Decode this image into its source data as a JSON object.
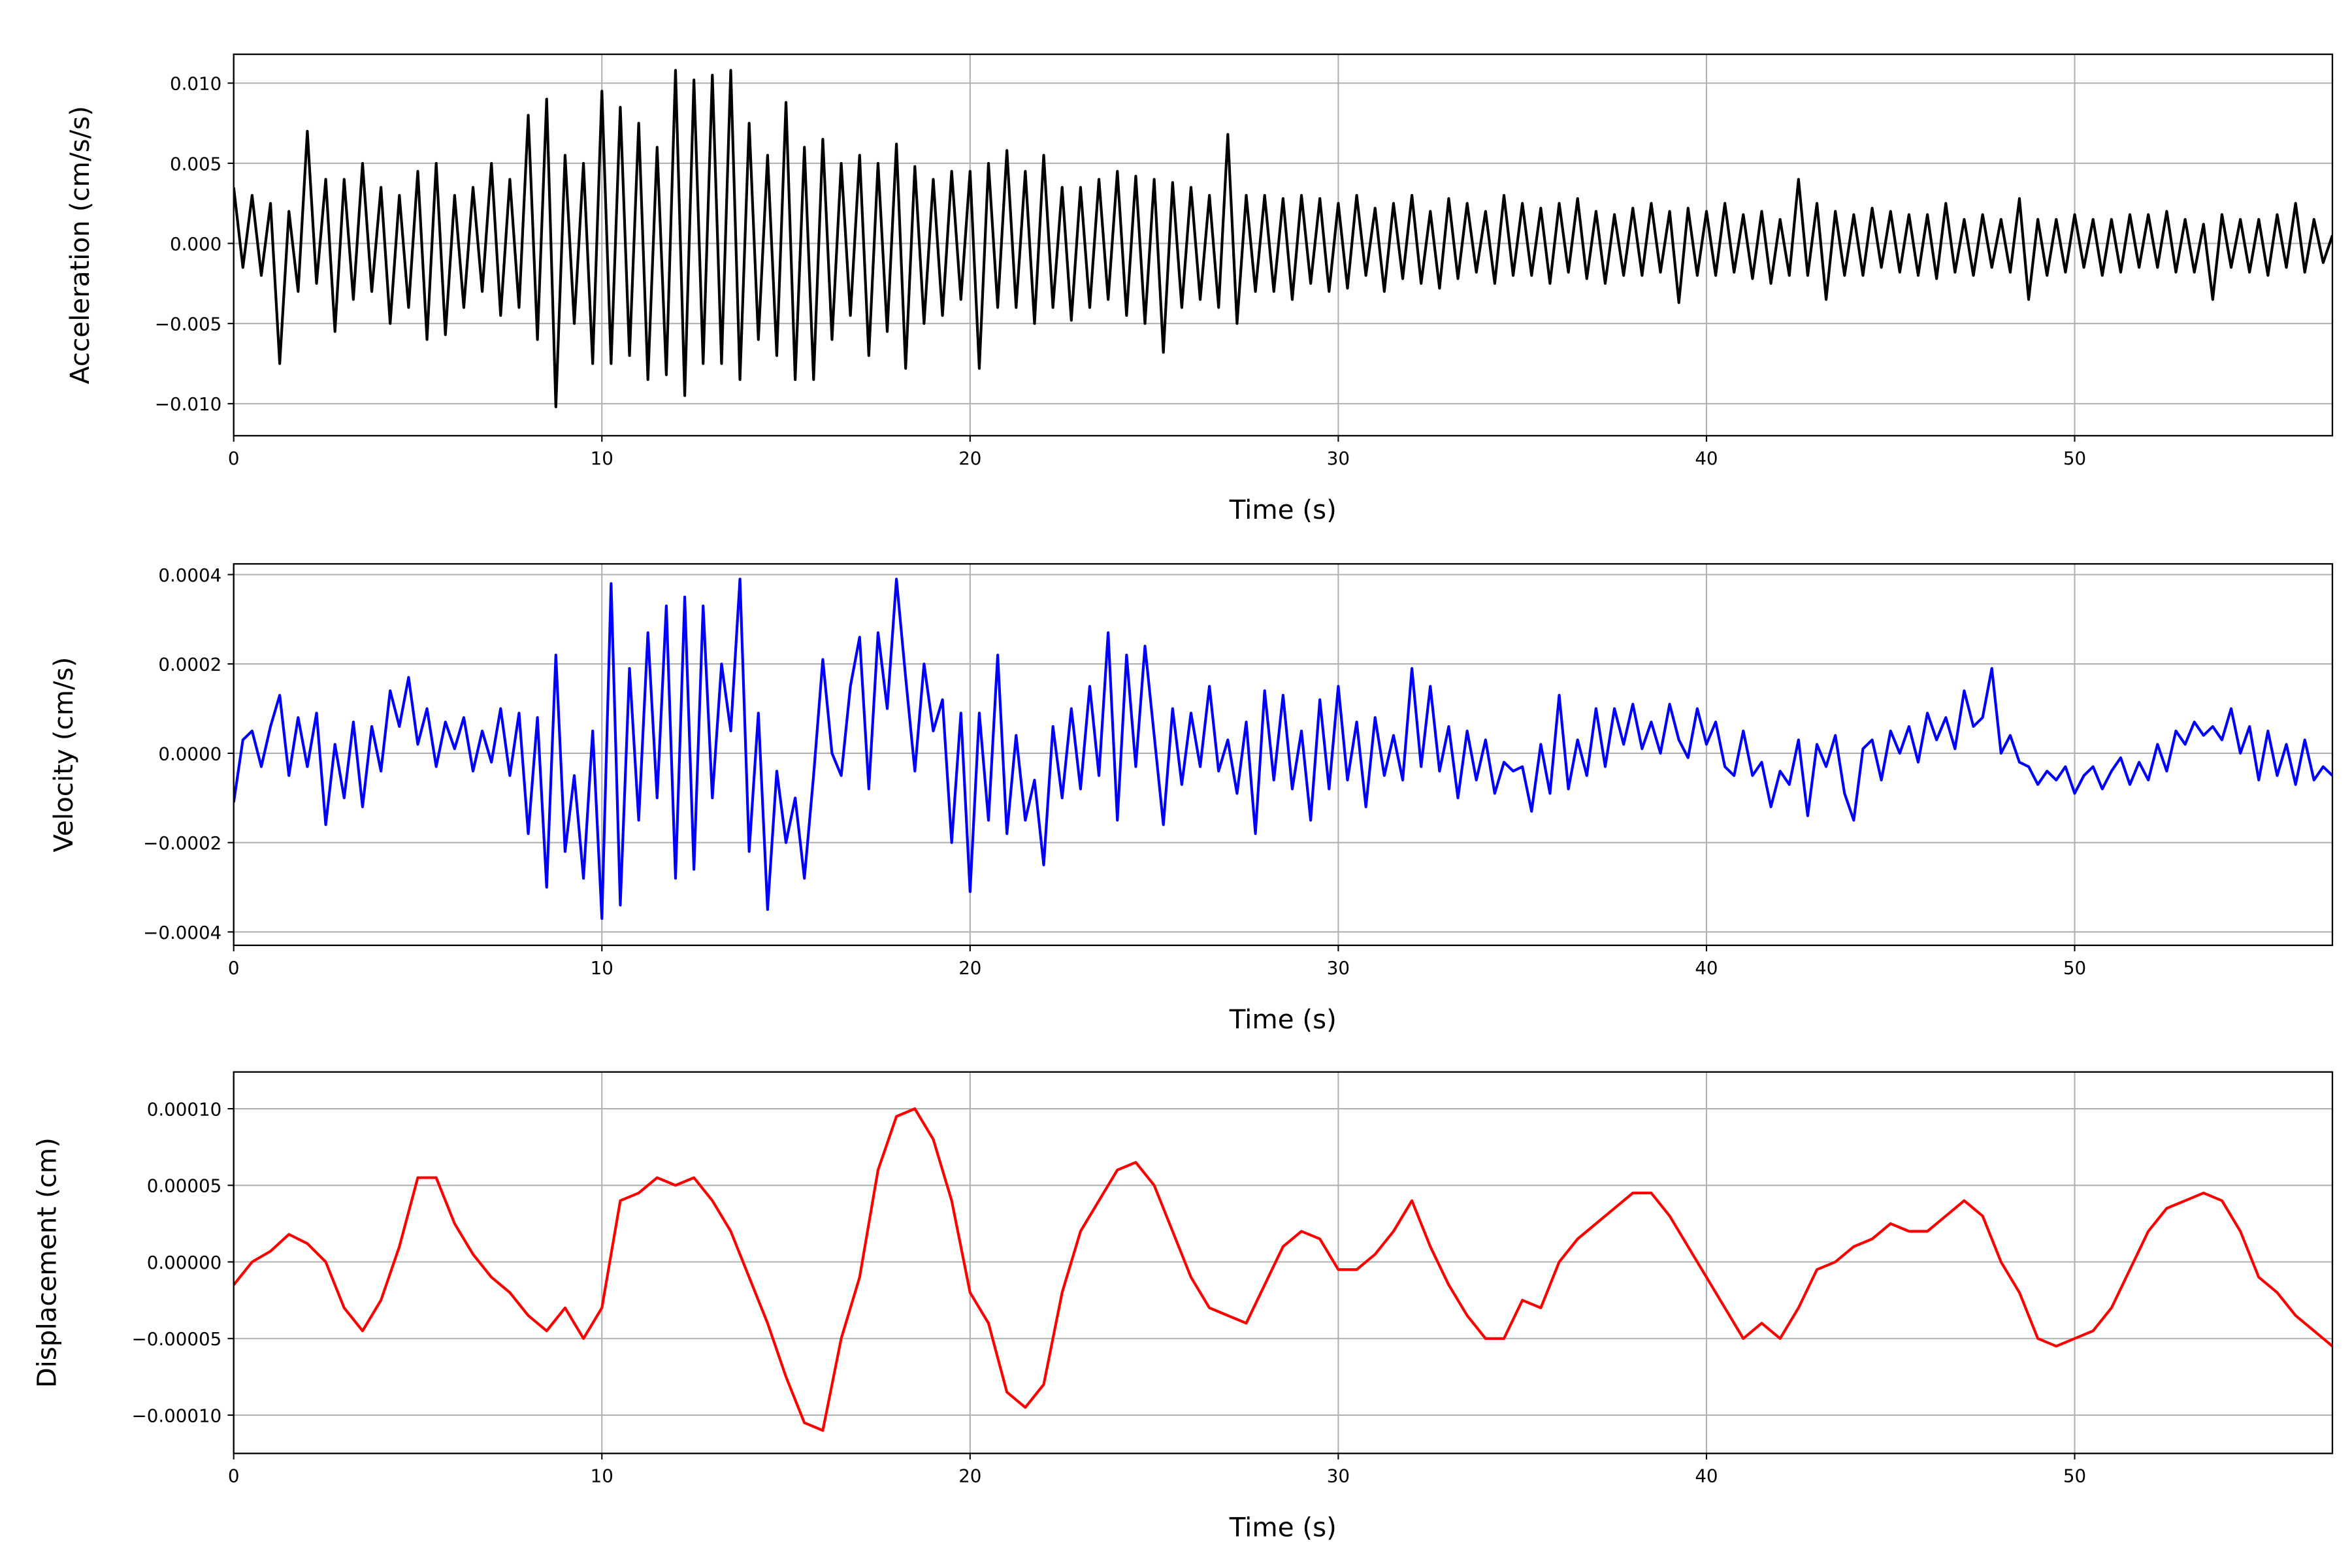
{
  "chart_data": [
    {
      "type": "line",
      "title": "",
      "xlabel": "Time (s)",
      "ylabel": "Acceleration (cm/s/s)",
      "xlim": [
        0,
        57
      ],
      "ylim": [
        -0.012,
        0.0118
      ],
      "grid": true,
      "color": "#000000",
      "x_start": 0,
      "x_step": 0.25,
      "value_scale": 0.001,
      "xticks": [
        0,
        10,
        20,
        30,
        40,
        50
      ],
      "xtick_labels": [
        "0",
        "10",
        "20",
        "30",
        "40",
        "50"
      ],
      "yticks": [
        -0.01,
        -0.005,
        0.0,
        0.005,
        0.01
      ],
      "ytick_labels": [
        "−0.010",
        "−0.005",
        "0.000",
        "0.005",
        "0.010"
      ],
      "values": [
        3.5,
        -1.5,
        3.0,
        -2.0,
        2.5,
        -7.5,
        2.0,
        -3.0,
        7.0,
        -2.5,
        4.0,
        -5.5,
        4.0,
        -3.5,
        5.0,
        -3.0,
        3.5,
        -5.0,
        3.0,
        -4.0,
        4.5,
        -6.0,
        5.0,
        -5.7,
        3.0,
        -4.0,
        3.5,
        -3.0,
        5.0,
        -4.5,
        4.0,
        -4.0,
        8.0,
        -6.0,
        9.0,
        -10.2,
        5.5,
        -5.0,
        5.0,
        -7.5,
        9.5,
        -7.5,
        8.5,
        -7.0,
        7.5,
        -8.5,
        6.0,
        -8.2,
        10.8,
        -9.5,
        10.2,
        -7.5,
        10.5,
        -7.5,
        10.8,
        -8.5,
        7.5,
        -6.0,
        5.5,
        -7.0,
        8.8,
        -8.5,
        6.0,
        -8.5,
        6.5,
        -6.0,
        5.0,
        -4.5,
        5.5,
        -7.0,
        5.0,
        -5.5,
        6.2,
        -7.8,
        4.8,
        -5.0,
        4.0,
        -4.5,
        4.5,
        -3.5,
        4.5,
        -7.8,
        5.0,
        -4.0,
        5.8,
        -4.0,
        4.5,
        -5.0,
        5.5,
        -4.0,
        3.5,
        -4.8,
        3.5,
        -4.0,
        4.0,
        -3.5,
        4.5,
        -4.5,
        4.2,
        -5.0,
        4.0,
        -6.8,
        3.8,
        -4.0,
        3.5,
        -3.5,
        3.0,
        -4.0,
        6.8,
        -5.0,
        3.0,
        -3.0,
        3.0,
        -3.0,
        2.8,
        -3.5,
        3.0,
        -2.5,
        2.8,
        -3.0,
        2.5,
        -2.8,
        3.0,
        -2.0,
        2.2,
        -3.0,
        2.5,
        -2.2,
        3.0,
        -2.5,
        2.0,
        -2.8,
        2.8,
        -2.2,
        2.5,
        -1.8,
        2.0,
        -2.5,
        3.0,
        -2.0,
        2.5,
        -2.0,
        2.2,
        -2.5,
        2.5,
        -1.8,
        2.8,
        -2.2,
        2.0,
        -2.5,
        1.8,
        -2.0,
        2.2,
        -2.0,
        2.5,
        -1.8,
        2.0,
        -3.7,
        2.2,
        -2.0,
        2.0,
        -2.0,
        2.5,
        -1.8,
        1.8,
        -2.2,
        2.0,
        -2.5,
        1.5,
        -2.0,
        4.0,
        -2.0,
        2.5,
        -3.5,
        2.0,
        -2.0,
        1.8,
        -2.0,
        2.2,
        -1.5,
        2.0,
        -1.8,
        1.8,
        -2.0,
        1.8,
        -2.2,
        2.5,
        -1.8,
        1.5,
        -2.0,
        1.8,
        -1.5,
        1.5,
        -1.8,
        2.8,
        -3.5,
        1.5,
        -2.0,
        1.5,
        -1.8,
        1.8,
        -1.5,
        1.5,
        -2.0,
        1.5,
        -1.8,
        1.8,
        -1.5,
        1.8,
        -1.5,
        2.0,
        -1.8,
        1.5,
        -1.8,
        1.2,
        -3.5,
        1.8,
        -1.5,
        1.5,
        -1.8,
        1.5,
        -2.0,
        1.8,
        -1.5,
        2.5,
        -1.8,
        1.5,
        -1.2,
        0.5
      ]
    },
    {
      "type": "line",
      "title": "",
      "xlabel": "Time (s)",
      "ylabel": "Velocity (cm/s)",
      "xlim": [
        0,
        57
      ],
      "ylim": [
        -0.00043,
        0.000424
      ],
      "grid": true,
      "color": "#0000ff",
      "x_start": 0,
      "x_step": 0.25,
      "value_scale": 0.0001,
      "xticks": [
        0,
        10,
        20,
        30,
        40,
        50
      ],
      "xtick_labels": [
        "0",
        "10",
        "20",
        "30",
        "40",
        "50"
      ],
      "yticks": [
        -0.0004,
        -0.0002,
        0.0,
        0.0002,
        0.0004
      ],
      "ytick_labels": [
        "−0.0004",
        "−0.0002",
        "0.0000",
        "0.0002",
        "0.0004"
      ],
      "values": [
        -1.1,
        0.3,
        0.5,
        -0.3,
        0.6,
        1.3,
        -0.5,
        0.8,
        -0.3,
        0.9,
        -1.6,
        0.2,
        -1.0,
        0.7,
        -1.2,
        0.6,
        -0.4,
        1.4,
        0.6,
        1.7,
        0.2,
        1.0,
        -0.3,
        0.7,
        0.1,
        0.8,
        -0.4,
        0.5,
        -0.2,
        1.0,
        -0.5,
        0.9,
        -1.8,
        0.8,
        -3.0,
        2.2,
        -2.2,
        -0.5,
        -2.8,
        0.5,
        -3.7,
        3.8,
        -3.4,
        1.9,
        -1.5,
        2.7,
        -1.0,
        3.3,
        -2.8,
        3.5,
        -2.6,
        3.3,
        -1.0,
        2.0,
        0.5,
        3.9,
        -2.2,
        0.9,
        -3.5,
        -0.4,
        -2.0,
        -1.0,
        -2.8,
        -0.5,
        2.1,
        0.0,
        -0.5,
        1.5,
        2.6,
        -0.8,
        2.7,
        1.0,
        3.9,
        1.7,
        -0.4,
        2.0,
        0.5,
        1.2,
        -2.0,
        0.9,
        -3.1,
        0.9,
        -1.5,
        2.2,
        -1.8,
        0.4,
        -1.5,
        -0.6,
        -2.5,
        0.6,
        -1.0,
        1.0,
        -0.8,
        1.5,
        -0.5,
        2.7,
        -1.5,
        2.2,
        -0.3,
        2.4,
        0.4,
        -1.6,
        1.0,
        -0.7,
        0.9,
        -0.3,
        1.5,
        -0.4,
        0.3,
        -0.9,
        0.7,
        -1.8,
        1.4,
        -0.6,
        1.3,
        -0.8,
        0.5,
        -1.5,
        1.2,
        -0.8,
        1.5,
        -0.6,
        0.7,
        -1.2,
        0.8,
        -0.5,
        0.4,
        -0.6,
        1.9,
        -0.3,
        1.5,
        -0.4,
        0.6,
        -1.0,
        0.5,
        -0.6,
        0.3,
        -0.9,
        -0.2,
        -0.4,
        -0.3,
        -1.3,
        0.2,
        -0.9,
        1.3,
        -0.8,
        0.3,
        -0.5,
        1.0,
        -0.3,
        1.0,
        0.2,
        1.1,
        0.1,
        0.7,
        0.0,
        1.1,
        0.3,
        -0.1,
        1.0,
        0.2,
        0.7,
        -0.3,
        -0.5,
        0.5,
        -0.5,
        -0.2,
        -1.2,
        -0.4,
        -0.7,
        0.3,
        -1.4,
        0.2,
        -0.3,
        0.4,
        -0.9,
        -1.5,
        0.1,
        0.3,
        -0.6,
        0.5,
        0.0,
        0.6,
        -0.2,
        0.9,
        0.3,
        0.8,
        0.1,
        1.4,
        0.6,
        0.8,
        1.9,
        0.0,
        0.4,
        -0.2,
        -0.3,
        -0.7,
        -0.4,
        -0.6,
        -0.3,
        -0.9,
        -0.5,
        -0.3,
        -0.8,
        -0.4,
        -0.1,
        -0.7,
        -0.2,
        -0.6,
        0.2,
        -0.4,
        0.5,
        0.2,
        0.7,
        0.4,
        0.6,
        0.3,
        1.0,
        0.0,
        0.6,
        -0.6,
        0.5,
        -0.5,
        0.2,
        -0.7,
        0.3,
        -0.6,
        -0.3,
        -0.5
      ]
    },
    {
      "type": "line",
      "title": "",
      "xlabel": "Time (s)",
      "ylabel": "Displacement (cm)",
      "xlim": [
        0,
        57
      ],
      "ylim": [
        -0.000125,
        0.000124
      ],
      "grid": true,
      "color": "#ff0000",
      "x_start": 0,
      "x_step": 0.5,
      "value_scale": 1e-05,
      "xticks": [
        0,
        10,
        20,
        30,
        40,
        50
      ],
      "xtick_labels": [
        "0",
        "10",
        "20",
        "30",
        "40",
        "50"
      ],
      "yticks": [
        -0.0001,
        -5e-05,
        0.0,
        5e-05,
        0.0001
      ],
      "ytick_labels": [
        "−0.00010",
        "−0.00005",
        "0.00000",
        "0.00005",
        "0.00010"
      ],
      "values": [
        -1.5,
        0,
        0.7,
        1.8,
        1.2,
        0,
        -3,
        -4.5,
        -2.5,
        1,
        5.5,
        5.5,
        2.5,
        0.5,
        -1,
        -2,
        -3.5,
        -4.5,
        -3,
        -5,
        -3,
        4,
        4.5,
        5.5,
        5,
        5.5,
        4,
        2,
        -1,
        -4,
        -7.5,
        -10.5,
        -11,
        -5,
        -1,
        6,
        9.5,
        10,
        8,
        4,
        -2,
        -4,
        -8.5,
        -9.5,
        -8,
        -2,
        2,
        4,
        6,
        6.5,
        5,
        2,
        -1,
        -3,
        -3.5,
        -4,
        -1.5,
        1,
        2,
        1.5,
        -0.5,
        -0.5,
        0.5,
        2,
        4,
        1,
        -1.5,
        -3.5,
        -5,
        -5,
        -2.5,
        -3,
        0,
        1.5,
        2.5,
        3.5,
        4.5,
        4.5,
        3,
        1,
        -1,
        -3,
        -5,
        -4,
        -5,
        -3,
        -0.5,
        0,
        1,
        1.5,
        2.5,
        2,
        2,
        3,
        4,
        3,
        0,
        -2,
        -5,
        -5.5,
        -5,
        -4.5,
        -3,
        -0.5,
        2,
        3.5,
        4,
        4.5,
        4,
        2,
        -1,
        -2,
        -3.5,
        -4.5,
        -5.5
      ]
    }
  ]
}
